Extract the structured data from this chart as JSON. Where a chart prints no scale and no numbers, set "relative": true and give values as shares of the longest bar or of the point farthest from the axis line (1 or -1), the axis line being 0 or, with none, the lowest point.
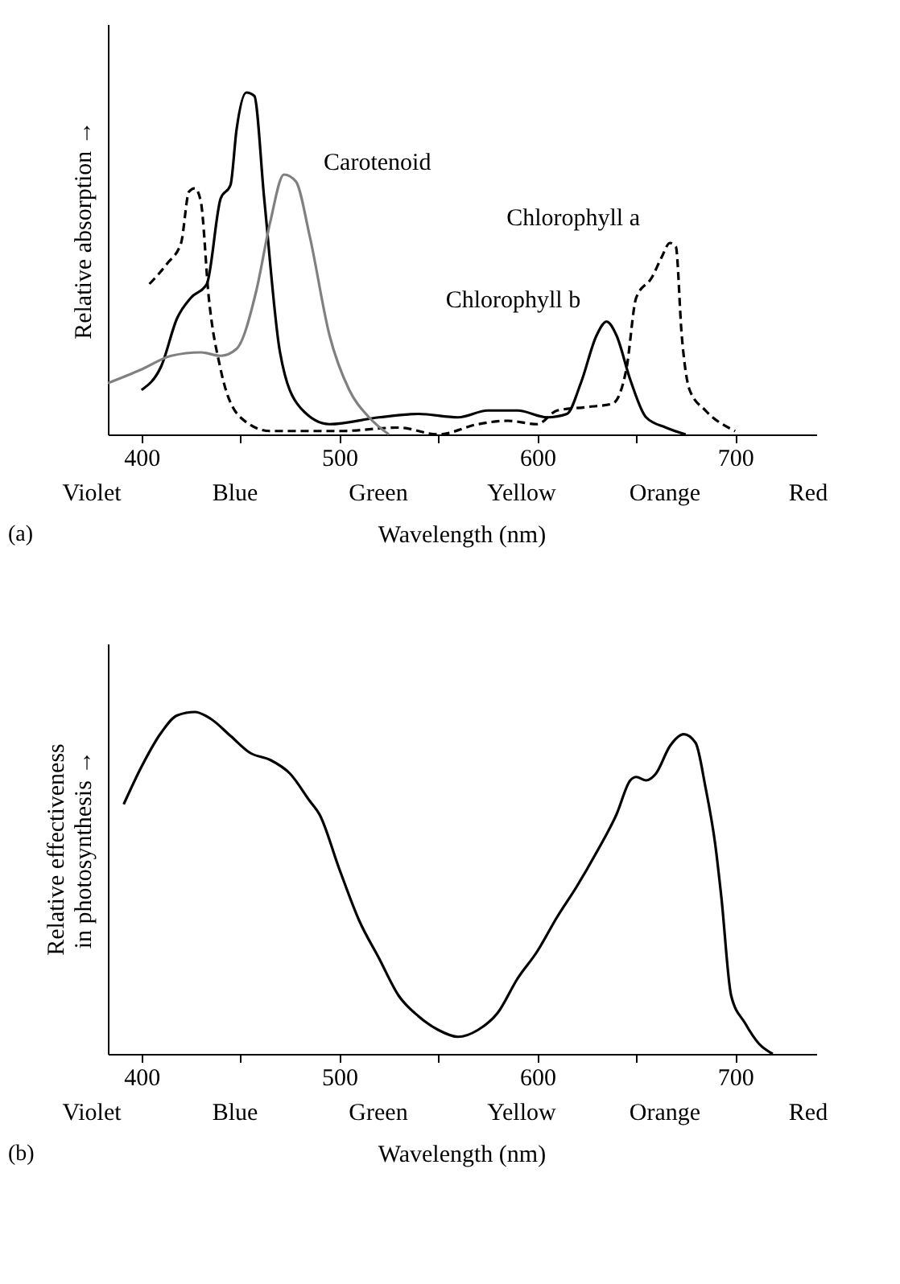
{
  "chart_data": [
    {
      "type": "line",
      "relative": true,
      "ylabel": "Relative absorption →",
      "xlabel": "Wavelength (nm)",
      "xlim": [
        383,
        741
      ],
      "xticks": [
        400,
        {
          "value": 450,
          "label": null
        },
        500,
        {
          "value": 550,
          "label": null
        },
        600,
        {
          "value": 650,
          "label": null
        },
        700
      ],
      "grid": false,
      "legend": false,
      "annotations": [
        "Violet",
        "Blue",
        "Green",
        "Yellow",
        "Orange",
        "Red",
        "(a)"
      ],
      "series": [
        {
          "name": "Chlorophyll b",
          "color": "#000000",
          "line_style": "solid",
          "x": [
            400,
            410,
            418,
            425,
            433,
            440,
            445,
            448,
            453,
            457,
            462,
            470,
            480,
            495,
            520,
            540,
            560,
            575,
            590,
            605,
            615,
            622,
            630,
            635,
            640,
            647,
            655,
            665,
            675
          ],
          "values": [
            0.13,
            0.2,
            0.34,
            0.4,
            0.44,
            0.69,
            0.73,
            0.89,
            1.0,
            0.99,
            0.69,
            0.24,
            0.08,
            0.03,
            0.05,
            0.06,
            0.05,
            0.07,
            0.07,
            0.05,
            0.06,
            0.15,
            0.29,
            0.33,
            0.29,
            0.16,
            0.05,
            0.02,
            0
          ]
        },
        {
          "name": "Chlorophyll a",
          "color": "#000000",
          "line_style": "dashed",
          "x": [
            404,
            413,
            420,
            424,
            427,
            430,
            434,
            440,
            450,
            465,
            500,
            530,
            550,
            570,
            585,
            600,
            610,
            625,
            638,
            645,
            650,
            658,
            663,
            667,
            670,
            673,
            677,
            685,
            700
          ],
          "values": [
            0.44,
            0.5,
            0.56,
            0.71,
            0.72,
            0.68,
            0.4,
            0.19,
            0.05,
            0.01,
            0.01,
            0.02,
            0.0,
            0.03,
            0.04,
            0.03,
            0.07,
            0.08,
            0.09,
            0.19,
            0.4,
            0.46,
            0.52,
            0.56,
            0.55,
            0.29,
            0.13,
            0.07,
            0.01
          ]
        },
        {
          "name": "Carotenoid",
          "color": "#808080",
          "line_style": "solid",
          "x": [
            383,
            400,
            415,
            430,
            440,
            448,
            458,
            465,
            472,
            478,
            485,
            495,
            505,
            515,
            525
          ],
          "values": [
            0.15,
            0.19,
            0.23,
            0.24,
            0.23,
            0.25,
            0.42,
            0.62,
            0.76,
            0.74,
            0.58,
            0.29,
            0.13,
            0.05,
            0
          ]
        }
      ]
    },
    {
      "type": "line",
      "relative": true,
      "ylabel": "Relative effectiveness\nin photosynthesis →",
      "xlabel": "Wavelength (nm)",
      "xlim": [
        383,
        741
      ],
      "xticks": [
        400,
        {
          "value": 450,
          "label": null
        },
        500,
        {
          "value": 550,
          "label": null
        },
        600,
        {
          "value": 650,
          "label": null
        },
        700
      ],
      "grid": false,
      "legend": false,
      "annotations": [
        "Violet",
        "Blue",
        "Green",
        "Yellow",
        "Orange",
        "Red",
        "(b)"
      ],
      "series": [
        {
          "color": "#000000",
          "line_style": "solid",
          "x": [
            391,
            400,
            410,
            418,
            427,
            435,
            445,
            455,
            465,
            475,
            485,
            490,
            500,
            510,
            520,
            530,
            540,
            550,
            560,
            570,
            580,
            590,
            600,
            610,
            620,
            630,
            640,
            647,
            650,
            655,
            660,
            667,
            674,
            680,
            685,
            690,
            693,
            698,
            705,
            712,
            719
          ],
          "values": [
            0.73,
            0.84,
            0.94,
            0.99,
            1.0,
            0.98,
            0.93,
            0.88,
            0.86,
            0.82,
            0.74,
            0.7,
            0.54,
            0.39,
            0.28,
            0.17,
            0.11,
            0.07,
            0.05,
            0.07,
            0.12,
            0.22,
            0.3,
            0.4,
            0.49,
            0.59,
            0.7,
            0.8,
            0.81,
            0.8,
            0.82,
            0.9,
            0.935,
            0.91,
            0.78,
            0.61,
            0.46,
            0.17,
            0.09,
            0.03,
            0
          ]
        }
      ]
    }
  ]
}
